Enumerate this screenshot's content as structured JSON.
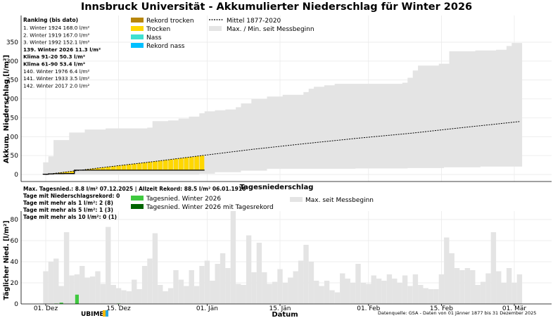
{
  "title": "Innsbruck Universität - Akkumulierter Niederschlag für Winter 2026",
  "colors": {
    "rekord_trocken": "#b8860b",
    "trocken": "#ffd700",
    "nass": "#40e0d0",
    "rekord_nass": "#00bfff",
    "envelope": "#e4e4e4",
    "daily_normal": "#3fc93f",
    "daily_record": "#006400",
    "highlight": "#b22222"
  },
  "ranking": {
    "header": "Ranking (bis dato)",
    "lines": [
      {
        "text": "1.  Winter 1924  168.0 l/m²",
        "style": "normal"
      },
      {
        "text": "2.  Winter 1919  167.0 l/m²",
        "style": "normal"
      },
      {
        "text": "3.  Winter 1992  152.1 l/m²",
        "style": "normal"
      },
      {
        "text": "139.  Winter 2026  11.3 l/m²",
        "style": "highlight"
      },
      {
        "text": "Klima 91-20 50.3 l/m²",
        "style": "bold"
      },
      {
        "text": "Klima 61-90 53.4 l/m²",
        "style": "bold"
      },
      {
        "text": "140.  Winter 1976  6.4 l/m²",
        "style": "normal"
      },
      {
        "text": "141.  Winter 1933  3.5 l/m²",
        "style": "normal"
      },
      {
        "text": "142.  Winter 2017  2.0 l/m²",
        "style": "normal"
      }
    ]
  },
  "top_legend": {
    "rekord_trocken": "Rekord trocken",
    "trocken": "Trocken",
    "nass": "Nass",
    "rekord_nass": "Rekord nass",
    "mittel": "Mittel 1877-2020",
    "maxmin": "Max. / Min. seit Messbeginn"
  },
  "bottom_title": "Tagesniederschlag",
  "stats": {
    "line1": "Max. Tagesnied.: 8.8 l/m² 07.12.2025 | Allzeit Rekord: 88.5 l/m² 06.01.1916",
    "line2": "Tage mit Niederschlagsrekord: 0",
    "line3": "Tage mit mehr als 1 l/m²: 2 (8)",
    "line4": "Tage mit mehr als 5 l/m²: 1 (3)",
    "line5": "Tage mit mehr als 10 l/m²: 0 (1)"
  },
  "bottom_legend": {
    "tagesnied": "Tagesnied. Winter 2026",
    "tagesrekord": "Tagesnied. Winter 2026 mit Tagesrekord",
    "max": "Max. seit Messbeginn"
  },
  "footer": {
    "xlabel": "Datum",
    "source": "Datenquelle: GSA - Daten von 01 Jänner 1877 bis 31 Dezember 2025",
    "logo": "UBIMET"
  },
  "chart_data": [
    {
      "type": "area",
      "title": "Innsbruck Universität - Akkumulierter Niederschlag für Winter 2026",
      "ylabel": "Akkum. Niederschlag [l/m²]",
      "ylim": [
        -8,
        370
      ],
      "yticks": [
        0,
        50,
        100,
        150,
        200,
        250,
        300,
        350
      ],
      "grid": true,
      "xrange_days": [
        -4,
        95
      ],
      "xticks": [
        {
          "day": 0,
          "label": "01. Dez"
        },
        {
          "day": 14,
          "label": "15. Dez"
        },
        {
          "day": 31,
          "label": "01. Jän"
        },
        {
          "day": 45,
          "label": "15. Jän"
        },
        {
          "day": 62,
          "label": "01. Feb"
        },
        {
          "day": 76,
          "label": "15. Feb"
        },
        {
          "day": 90,
          "label": "01. Mär"
        }
      ],
      "envelope_max_steps": [
        {
          "from": 0,
          "value": 32
        },
        {
          "from": 1,
          "value": 48
        },
        {
          "from": 2,
          "value": 91
        },
        {
          "from": 5,
          "value": 111
        },
        {
          "from": 8,
          "value": 119
        },
        {
          "from": 12,
          "value": 122
        },
        {
          "from": 20,
          "value": 124
        },
        {
          "from": 21,
          "value": 141
        },
        {
          "from": 24,
          "value": 143
        },
        {
          "from": 26,
          "value": 148
        },
        {
          "from": 28,
          "value": 153
        },
        {
          "from": 30,
          "value": 162
        },
        {
          "from": 31,
          "value": 167
        },
        {
          "from": 33,
          "value": 170
        },
        {
          "from": 35,
          "value": 172
        },
        {
          "from": 37,
          "value": 178
        },
        {
          "from": 38,
          "value": 188
        },
        {
          "from": 40,
          "value": 200
        },
        {
          "from": 43,
          "value": 206
        },
        {
          "from": 46,
          "value": 211
        },
        {
          "from": 50,
          "value": 218
        },
        {
          "from": 51,
          "value": 227
        },
        {
          "from": 52,
          "value": 232
        },
        {
          "from": 54,
          "value": 236
        },
        {
          "from": 56,
          "value": 240
        },
        {
          "from": 69,
          "value": 243
        },
        {
          "from": 70,
          "value": 256
        },
        {
          "from": 71,
          "value": 275
        },
        {
          "from": 72,
          "value": 288
        },
        {
          "from": 76,
          "value": 293
        },
        {
          "from": 78,
          "value": 326
        },
        {
          "from": 83,
          "value": 328
        },
        {
          "from": 87,
          "value": 330
        },
        {
          "from": 89,
          "value": 340
        },
        {
          "from": 90,
          "value": 348
        },
        {
          "from": 91,
          "value": 348
        }
      ],
      "envelope_min_steps": [
        {
          "from": 0,
          "value": 0
        },
        {
          "from": 30,
          "value": 2
        },
        {
          "from": 33,
          "value": 6
        },
        {
          "from": 38,
          "value": 10
        },
        {
          "from": 43,
          "value": 15
        },
        {
          "from": 60,
          "value": 16
        },
        {
          "from": 70,
          "value": 17
        },
        {
          "from": 77,
          "value": 19
        },
        {
          "from": 84,
          "value": 21
        },
        {
          "from": 91,
          "value": 21
        }
      ],
      "mean_points": [
        {
          "day": 0,
          "value": 0
        },
        {
          "day": 10,
          "value": 17
        },
        {
          "day": 20,
          "value": 33
        },
        {
          "day": 30,
          "value": 50
        },
        {
          "day": 40,
          "value": 67
        },
        {
          "day": 50,
          "value": 82
        },
        {
          "day": 60,
          "value": 96
        },
        {
          "day": 70,
          "value": 109
        },
        {
          "day": 80,
          "value": 124
        },
        {
          "day": 91,
          "value": 140
        }
      ],
      "winter2026_accum": [
        0.5,
        1.5,
        2.0,
        2.2,
        2.4,
        2.5,
        11.3,
        11.3,
        11.3,
        11.3,
        11.3,
        11.3,
        11.3,
        11.3,
        11.3,
        11.3,
        11.3,
        11.3,
        11.3,
        11.3,
        11.3,
        11.3,
        11.3,
        11.3,
        11.3,
        11.3,
        11.3,
        11.3,
        11.3,
        11.3,
        11.3,
        11.3,
        11.3,
        11.3,
        11.3,
        11.3,
        11.3,
        11.3,
        11.3,
        11.3,
        11.3,
        11.3,
        11.3,
        11.3,
        11.3,
        11.3,
        11.3,
        11.3,
        11.3,
        11.3,
        11.3,
        11.3,
        11.3,
        11.3,
        11.3,
        11.3,
        11.3,
        11.3,
        11.3,
        11.3,
        11.3,
        11.3,
        11.3,
        11.3,
        11.3,
        11.3,
        11.3,
        11.3,
        11.3,
        11.3,
        11.3,
        11.3,
        11.3,
        11.3,
        11.3,
        11.3,
        11.3,
        11.3,
        11.3,
        11.3,
        11.3,
        11.3,
        11.3,
        11.3,
        11.3,
        11.3,
        11.3,
        11.3,
        11.3,
        11.3,
        11.3,
        11.3
      ],
      "winter2026_last_day": 30,
      "note_bars": "Bars show winter 2026 cumulative sum vs. mean (yellow = trocken)"
    },
    {
      "type": "bar",
      "title": "Tagesniederschlag",
      "ylabel": "Täglicher Nied. [l/m²]",
      "ylim": [
        0,
        90
      ],
      "yticks": [
        0,
        20,
        40,
        60,
        80
      ],
      "grid": true,
      "max_daily": [
        31,
        40,
        43,
        17,
        68,
        27,
        28,
        36,
        25,
        26,
        31,
        19,
        73,
        18,
        15,
        13,
        12,
        23,
        14,
        36,
        43,
        67,
        18,
        12,
        15,
        32,
        23,
        17,
        32,
        17,
        36,
        41,
        22,
        38,
        48,
        34,
        88,
        19,
        18,
        65,
        30,
        58,
        30,
        19,
        21,
        33,
        20,
        25,
        31,
        41,
        56,
        40,
        22,
        17,
        22,
        13,
        11,
        29,
        24,
        20,
        38,
        20,
        19,
        27,
        24,
        22,
        28,
        24,
        20,
        27,
        17,
        28,
        18,
        15,
        14,
        14,
        28,
        63,
        48,
        34,
        32,
        34,
        32,
        18,
        21,
        29,
        68,
        31,
        20,
        34,
        20,
        28
      ],
      "winter2026_daily": [
        0,
        0,
        0,
        0,
        0,
        0,
        8.8,
        0,
        0,
        0,
        0,
        0,
        0,
        0,
        0,
        0,
        0,
        0,
        0,
        0,
        0,
        0,
        0,
        0,
        0,
        0,
        0,
        0,
        0,
        0,
        0
      ],
      "winter2026_daily_small": [
        {
          "day": 3,
          "value": 1.2
        },
        {
          "day": 14,
          "value": 0.4
        },
        {
          "day": 2,
          "value": 0.4
        }
      ]
    }
  ]
}
